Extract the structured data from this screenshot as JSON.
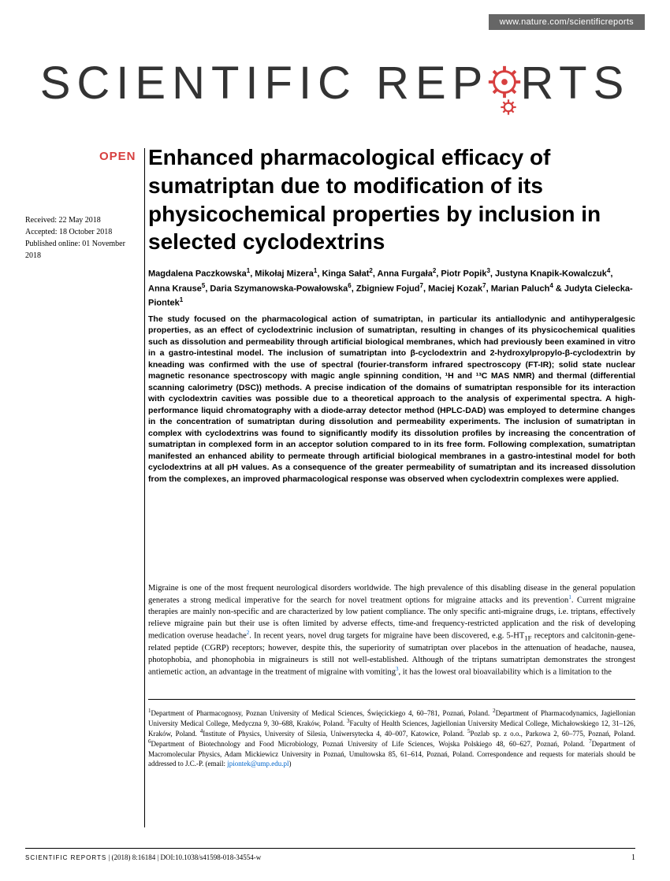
{
  "header": {
    "url": "www.nature.com/scientificreports",
    "journal_name_pre": "SCIENTIFIC REP",
    "journal_name_post": "RTS",
    "gear_color": "#d73f3f"
  },
  "badge": {
    "open": "OPEN"
  },
  "colors": {
    "brand_red": "#d73f3f",
    "link_blue": "#0066cc",
    "text": "#000000",
    "bg": "#ffffff",
    "header_bar": "#666666"
  },
  "dates": {
    "received": "Received: 22 May 2018",
    "accepted": "Accepted: 18 October 2018",
    "published": "Published online: 01 November 2018"
  },
  "title": "Enhanced pharmacological efficacy of sumatriptan due to modification of its physicochemical properties by inclusion in selected cyclodextrins",
  "authors_html": "Magdalena Paczkowska<sup>1</sup>, Mikołaj Mizera<sup>1</sup>, Kinga Sałat<sup>2</sup>, Anna Furgała<sup>2</sup>, Piotr Popik<sup>3</sup>, Justyna Knapik-Kowalczuk<sup>4</sup>, Anna Krause<sup>5</sup>, Daria Szymanowska-Powałowska<sup>6</sup>, Zbigniew Fojud<sup>7</sup>, Maciej Kozak<sup>7</sup>, Marian Paluch<sup>4</sup> & Judyta Cielecka-Piontek<sup>1</sup>",
  "abstract": "The study focused on the pharmacological action of sumatriptan, in particular its antiallodynic and antihyperalgesic properties, as an effect of cyclodextrinic inclusion of sumatriptan, resulting in changes of its physicochemical qualities such as dissolution and permeability through artificial biological membranes, which had previously been examined in vitro in a gastro-intestinal model. The inclusion of sumatriptan into β-cyclodextrin and 2-hydroxylpropylo-β-cyclodextrin by kneading was confirmed with the use of spectral (fourier-transform infrared spectroscopy (FT-IR); solid state nuclear magnetic resonance spectroscopy with magic angle spinning condition, ¹H and ¹³C MAS NMR) and thermal (differential scanning calorimetry (DSC)) methods. A precise indication of the domains of sumatriptan responsible for its interaction with cyclodextrin cavities was possible due to a theoretical approach to the analysis of experimental spectra. A high-performance liquid chromatography with a diode-array detector method (HPLC-DAD) was employed to determine changes in the concentration of sumatriptan during dissolution and permeability experiments. The inclusion of sumatriptan in complex with cyclodextrins was found to significantly modify its dissolution profiles by increasing the concentration of sumatriptan in complexed form in an acceptor solution compared to in its free form. Following complexation, sumatriptan manifested an enhanced ability to permeate through artificial biological membranes in a gastro-intestinal model for both cyclodextrins at all pH values. As a consequence of the greater permeability of sumatriptan and its increased dissolution from the complexes, an improved pharmacological response was observed when cyclodextrin complexes were applied.",
  "body_html": "Migraine is one of the most frequent neurological disorders worldwide. The high prevalence of this disabling disease in the general population generates a strong medical imperative for the search for novel treatment options for migraine attacks and its prevention<sup>1</sup>. Current migraine therapies are mainly non-specific and are characterized by low patient compliance. The only specific anti-migraine drugs, i.e. triptans, effectively relieve migraine pain but their use is often limited by adverse effects, time-and frequency-restricted application and the risk of developing medication overuse headache<sup>2</sup>. In recent years, novel drug targets for migraine have been discovered, e.g. 5-HT<sub>1F</sub> receptors and calcitonin-gene-related peptide (CGRP) receptors; however, despite this, the superiority of sumatriptan over placebos in the attenuation of headache, nausea, photophobia, and phonophobia in migraineurs is still not well-established. Although of the triptans sumatriptan demonstrates the strongest antiemetic action, an advantage in the treatment of migraine with vomiting<sup>3</sup>, it has the lowest oral bioavailability which is a limitation to the",
  "affiliations_html": "<sup>1</sup>Department of Pharmacognosy, Poznan University of Medical Sciences, Święcickiego 4, 60–781, Poznań, Poland. <sup>2</sup>Department of Pharmacodynamics, Jagiellonian University Medical College, Medyczna 9, 30–688, Kraków, Poland. <sup>3</sup>Faculty of Health Sciences, Jagiellonian University Medical College, Michałowskiego 12, 31–126, Kraków, Poland. <sup>4</sup>Institute of Physics, University of Silesia, Uniwersytecka 4, 40–007, Katowice, Poland. <sup>5</sup>Pozlab sp. z o.o., Parkowa 2, 60–775, Poznań, Poland. <sup>6</sup>Department of Biotechnology and Food Microbiology, Poznań University of Life Sciences, Wojska Polskiego 48, 60–627, Poznań, Poland. <sup>7</sup>Department of Macromolecular Physics, Adam Mickiewicz University in Poznań, Umultowska 85, 61–614, Poznań, Poland. Correspondence and requests for materials should be addressed to J.C.-P. (email: <span class=\"email\">jpiontek@ump.edu.pl</span>)",
  "footer": {
    "journal_label": "SCIENTIFIC REPORTS",
    "citation": " |         (2018) 8:16184  | DOI:10.1038/s41598-018-34554-w",
    "page": "1"
  }
}
